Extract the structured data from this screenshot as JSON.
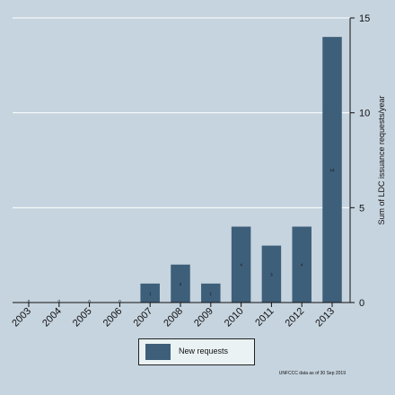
{
  "chart_data": {
    "type": "bar",
    "categories": [
      "2003",
      "2004",
      "2005",
      "2006",
      "2007",
      "2008",
      "2009",
      "2010",
      "2011",
      "2012",
      "2013"
    ],
    "series": [
      {
        "name": "New requests",
        "values": [
          0,
          0,
          0,
          0,
          1,
          2,
          1,
          4,
          3,
          4,
          14
        ]
      }
    ],
    "data_labels": [
      "0",
      "0",
      "0",
      "0",
      "1",
      "2",
      "1",
      "4",
      "3",
      "4",
      "14"
    ],
    "ylabel": "Sum of LDC issuance requests/year",
    "ylim": [
      0,
      15
    ],
    "yticks": [
      0,
      5,
      10,
      15
    ],
    "y_axis_position": "right",
    "grid": true,
    "legend_position": "bottom",
    "colors": {
      "bar": "#3e5f7a",
      "background": "#c6d4df",
      "plot_background": "#c6d4df",
      "grid": "#ffffff"
    },
    "source_note": "UNFCCC data as of 30 Sep 2019"
  }
}
